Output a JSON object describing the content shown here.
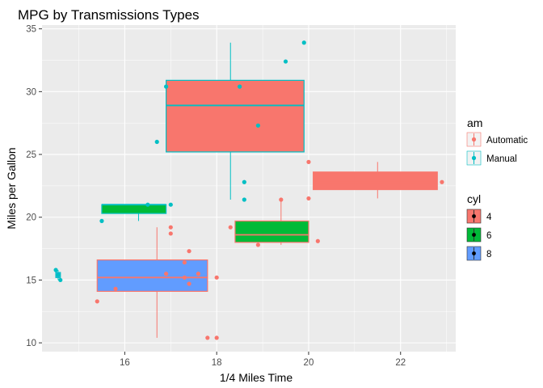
{
  "chart_data": {
    "type": "boxplot",
    "title": "MPG by Transmissions Types",
    "xlabel": "1/4 Miles Time",
    "ylabel": "Miles per Gallon",
    "xlim": [
      14.2,
      23.2
    ],
    "ylim": [
      9.3,
      35.3
    ],
    "x_ticks": [
      16,
      18,
      20,
      22
    ],
    "y_ticks": [
      10,
      15,
      20,
      25,
      30,
      35
    ],
    "grid": true,
    "legend_position": "right",
    "legends": [
      {
        "title": "am",
        "entries": [
          {
            "name": "Automatic",
            "color": "#F8766D"
          },
          {
            "name": "Manual",
            "color": "#00BFC4"
          }
        ]
      },
      {
        "title": "cyl",
        "entries": [
          {
            "name": "4",
            "color": "#F8766D"
          },
          {
            "name": "6",
            "color": "#00BA38"
          },
          {
            "name": "8",
            "color": "#619CFF"
          }
        ]
      }
    ],
    "boxes": [
      {
        "am": "Manual",
        "cyl": "4",
        "xmin": 16.9,
        "xmax": 19.9,
        "q1": 25.2,
        "median": 28.9,
        "q3": 30.9,
        "whisker_low": 21.4,
        "whisker_high": 33.9,
        "whisker_x": 18.3
      },
      {
        "am": "Manual",
        "cyl": "6",
        "xmin": 15.5,
        "xmax": 16.9,
        "q1": 20.3,
        "median": 21.0,
        "q3": 21.0,
        "whisker_low": 19.7,
        "whisker_high": 21.0,
        "whisker_x": 16.3
      },
      {
        "am": "Manual",
        "cyl": "8",
        "xmin": 14.5,
        "xmax": 14.6,
        "q1": 15.2,
        "median": 15.4,
        "q3": 15.6,
        "whisker_low": 15.0,
        "whisker_high": 15.8,
        "whisker_x": 14.55
      },
      {
        "am": "Automatic",
        "cyl": "4",
        "xmin": 20.1,
        "xmax": 22.8,
        "q1": 22.2,
        "median": 22.8,
        "q3": 23.6,
        "whisker_low": 21.5,
        "whisker_high": 24.4,
        "whisker_x": 21.5
      },
      {
        "am": "Automatic",
        "cyl": "6",
        "xmin": 18.4,
        "xmax": 20.0,
        "q1": 18.0,
        "median": 18.6,
        "q3": 19.7,
        "whisker_low": 17.8,
        "whisker_high": 21.4,
        "whisker_x": 19.4
      },
      {
        "am": "Automatic",
        "cyl": "8",
        "xmin": 15.4,
        "xmax": 17.8,
        "q1": 14.1,
        "median": 15.2,
        "q3": 16.6,
        "whisker_low": 10.4,
        "whisker_high": 19.2,
        "whisker_x": 16.7
      }
    ],
    "points": [
      {
        "am": "Manual",
        "x": 16.9,
        "y": 30.4
      },
      {
        "am": "Manual",
        "x": 18.5,
        "y": 30.4
      },
      {
        "am": "Manual",
        "x": 19.5,
        "y": 32.4
      },
      {
        "am": "Manual",
        "x": 19.9,
        "y": 33.9
      },
      {
        "am": "Manual",
        "x": 18.9,
        "y": 27.3
      },
      {
        "am": "Manual",
        "x": 16.7,
        "y": 26.0
      },
      {
        "am": "Manual",
        "x": 18.6,
        "y": 22.8
      },
      {
        "am": "Manual",
        "x": 18.6,
        "y": 21.4
      },
      {
        "am": "Manual",
        "x": 16.5,
        "y": 21.0
      },
      {
        "am": "Manual",
        "x": 17.0,
        "y": 21.0
      },
      {
        "am": "Manual",
        "x": 15.5,
        "y": 19.7
      },
      {
        "am": "Manual",
        "x": 14.5,
        "y": 15.8
      },
      {
        "am": "Manual",
        "x": 14.55,
        "y": 15.4
      },
      {
        "am": "Manual",
        "x": 14.6,
        "y": 15.0
      },
      {
        "am": "Automatic",
        "x": 20.0,
        "y": 24.4
      },
      {
        "am": "Automatic",
        "x": 22.9,
        "y": 22.8
      },
      {
        "am": "Automatic",
        "x": 20.0,
        "y": 21.5
      },
      {
        "am": "Automatic",
        "x": 19.4,
        "y": 21.4
      },
      {
        "am": "Automatic",
        "x": 18.3,
        "y": 19.2
      },
      {
        "am": "Automatic",
        "x": 20.2,
        "y": 18.1
      },
      {
        "am": "Automatic",
        "x": 18.9,
        "y": 17.8
      },
      {
        "am": "Automatic",
        "x": 17.0,
        "y": 19.2
      },
      {
        "am": "Automatic",
        "x": 17.0,
        "y": 18.7
      },
      {
        "am": "Automatic",
        "x": 17.4,
        "y": 17.3
      },
      {
        "am": "Automatic",
        "x": 17.3,
        "y": 16.4
      },
      {
        "am": "Automatic",
        "x": 17.6,
        "y": 15.5
      },
      {
        "am": "Automatic",
        "x": 18.0,
        "y": 15.2
      },
      {
        "am": "Automatic",
        "x": 17.3,
        "y": 15.2
      },
      {
        "am": "Automatic",
        "x": 16.9,
        "y": 15.5
      },
      {
        "am": "Automatic",
        "x": 17.4,
        "y": 14.7
      },
      {
        "am": "Automatic",
        "x": 15.8,
        "y": 14.3
      },
      {
        "am": "Automatic",
        "x": 15.4,
        "y": 13.3
      },
      {
        "am": "Automatic",
        "x": 17.8,
        "y": 10.4
      },
      {
        "am": "Automatic",
        "x": 18.0,
        "y": 10.4
      }
    ]
  }
}
